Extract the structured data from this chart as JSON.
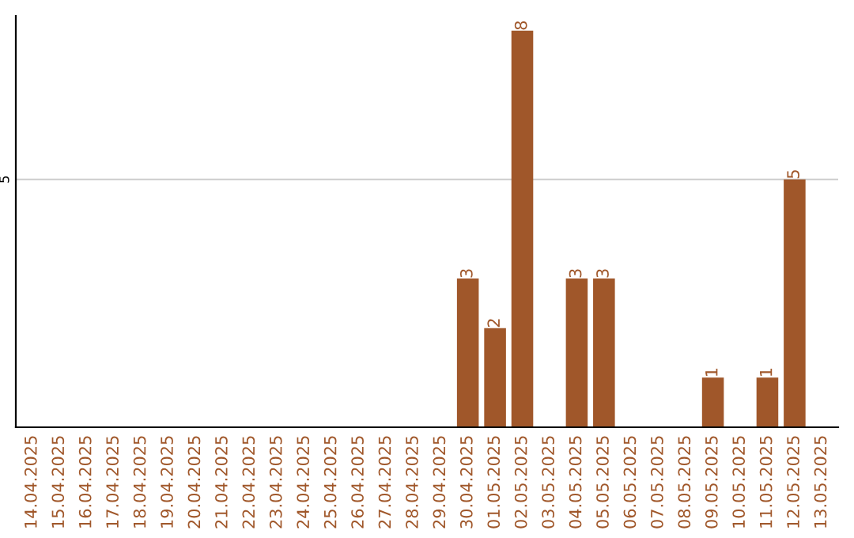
{
  "chart_data": {
    "type": "bar",
    "categories": [
      "14.04.2025",
      "15.04.2025",
      "16.04.2025",
      "17.04.2025",
      "18.04.2025",
      "19.04.2025",
      "20.04.2025",
      "21.04.2025",
      "22.04.2025",
      "23.04.2025",
      "24.04.2025",
      "25.04.2025",
      "26.04.2025",
      "27.04.2025",
      "28.04.2025",
      "29.04.2025",
      "30.04.2025",
      "01.05.2025",
      "02.05.2025",
      "03.05.2025",
      "04.05.2025",
      "05.05.2025",
      "06.05.2025",
      "07.05.2025",
      "08.05.2025",
      "09.05.2025",
      "10.05.2025",
      "11.05.2025",
      "12.05.2025",
      "13.05.2025"
    ],
    "values": [
      null,
      null,
      null,
      null,
      null,
      null,
      null,
      null,
      null,
      null,
      null,
      null,
      null,
      null,
      null,
      null,
      3,
      2,
      8,
      null,
      3,
      3,
      null,
      null,
      null,
      1,
      null,
      1,
      5,
      null
    ],
    "value_labels": [
      null,
      null,
      null,
      null,
      null,
      null,
      null,
      null,
      null,
      null,
      null,
      null,
      null,
      null,
      null,
      null,
      "3",
      "2",
      "8",
      null,
      "3",
      "3",
      null,
      null,
      null,
      "1",
      null,
      "1",
      "5",
      null
    ],
    "ylim": [
      0,
      8.3
    ],
    "color": "#a0572a",
    "ref_lines": [
      {
        "axis": "y",
        "value": 5,
        "label": "5",
        "color": "#cccccc"
      }
    ]
  }
}
